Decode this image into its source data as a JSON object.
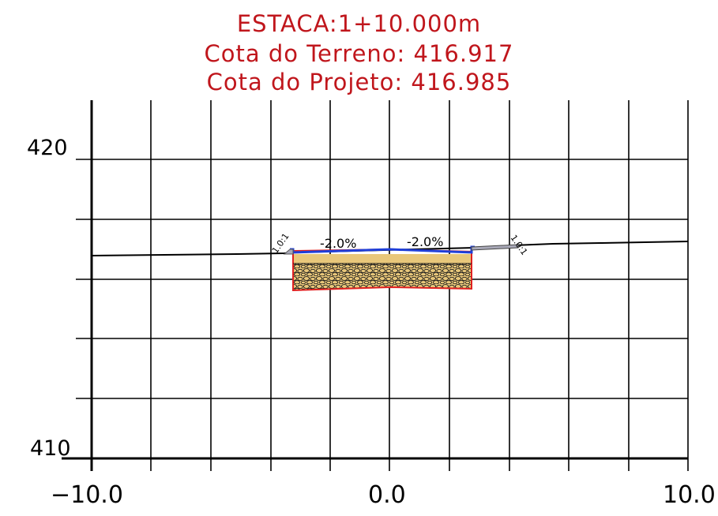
{
  "header": {
    "station": "ESTACA:1+10.000m",
    "terrain_elevation": "Cota do Terreno:  416.917",
    "design_elevation": "Cota do Projeto: 416.985"
  },
  "axes": {
    "y_labels": [
      "420",
      "410"
    ],
    "x_labels": [
      "−10.0",
      "0.0",
      "10.0"
    ]
  },
  "section": {
    "slope_left": "-2.0%",
    "slope_right": "-2.0%",
    "ratio_left": "1.0:1",
    "ratio_right": "1.0:1"
  },
  "colors": {
    "title": "#c0161c",
    "pavement_top": "#1f3fd8",
    "base_fill": "#e8c77a",
    "base_outline": "#e02020",
    "shoulder": "#a9a9b8",
    "grid": "#000000"
  }
}
